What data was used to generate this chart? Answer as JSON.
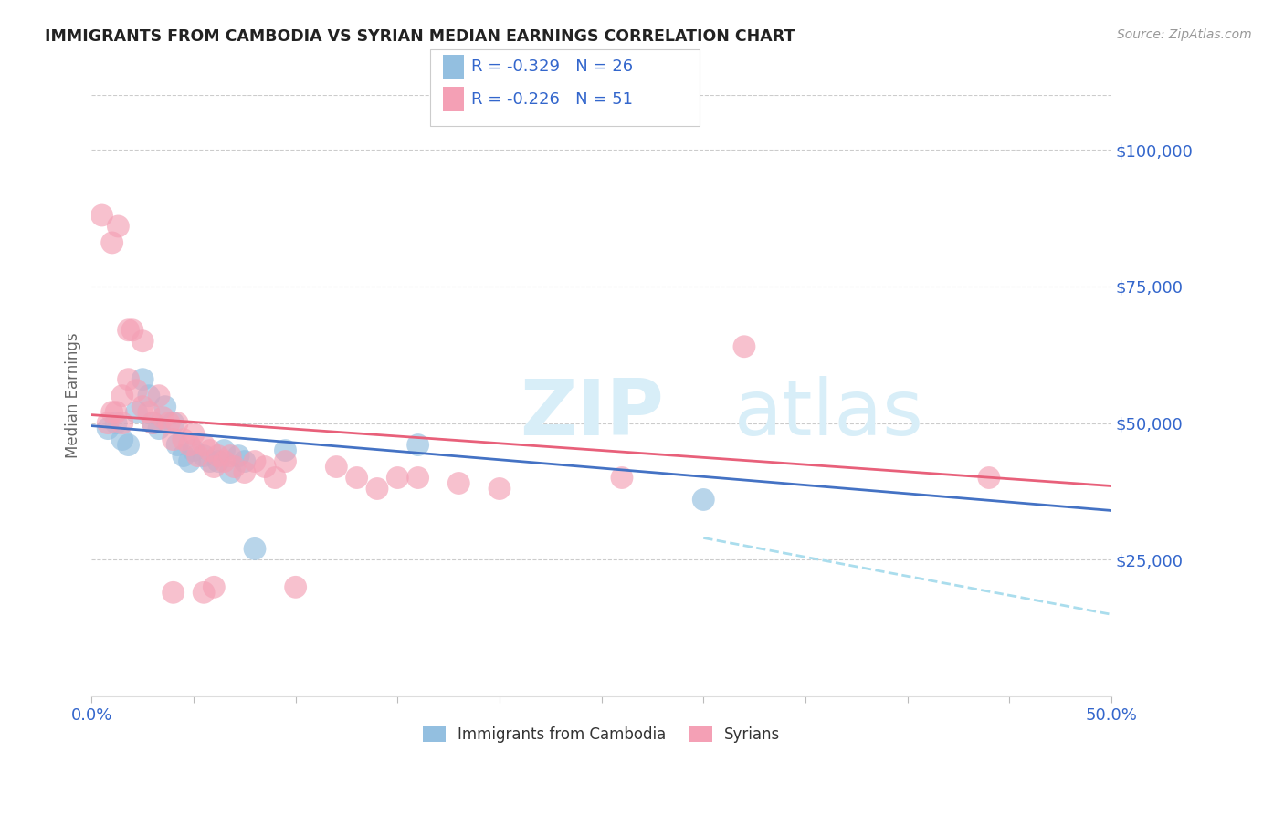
{
  "title": "IMMIGRANTS FROM CAMBODIA VS SYRIAN MEDIAN EARNINGS CORRELATION CHART",
  "source": "Source: ZipAtlas.com",
  "ylabel": "Median Earnings",
  "xlim": [
    0.0,
    0.5
  ],
  "ylim": [
    0,
    110000
  ],
  "yticks_right": [
    25000,
    50000,
    75000,
    100000
  ],
  "ytick_labels_right": [
    "$25,000",
    "$50,000",
    "$75,000",
    "$100,000"
  ],
  "cambodia_color": "#93BFE0",
  "syria_color": "#F4A0B5",
  "cambodia_R": -0.329,
  "cambodia_N": 26,
  "syria_R": -0.226,
  "syria_N": 51,
  "trend_blue_color": "#4472C4",
  "trend_pink_color": "#E8607A",
  "trend_dashed_color": "#AADDED",
  "background_color": "#ffffff",
  "watermark_color": "#D8EEF8",
  "cambodia_scatter": [
    [
      0.008,
      49000
    ],
    [
      0.012,
      50000
    ],
    [
      0.015,
      47000
    ],
    [
      0.018,
      46000
    ],
    [
      0.022,
      52000
    ],
    [
      0.025,
      58000
    ],
    [
      0.028,
      55000
    ],
    [
      0.03,
      50000
    ],
    [
      0.033,
      49000
    ],
    [
      0.036,
      53000
    ],
    [
      0.04,
      50000
    ],
    [
      0.042,
      46000
    ],
    [
      0.045,
      44000
    ],
    [
      0.048,
      43000
    ],
    [
      0.05,
      45000
    ],
    [
      0.055,
      44000
    ],
    [
      0.058,
      43000
    ],
    [
      0.062,
      43000
    ],
    [
      0.065,
      45000
    ],
    [
      0.068,
      41000
    ],
    [
      0.072,
      44000
    ],
    [
      0.075,
      43000
    ],
    [
      0.08,
      27000
    ],
    [
      0.095,
      45000
    ],
    [
      0.16,
      46000
    ],
    [
      0.3,
      36000
    ]
  ],
  "syria_scatter": [
    [
      0.005,
      88000
    ],
    [
      0.01,
      83000
    ],
    [
      0.013,
      86000
    ],
    [
      0.018,
      67000
    ],
    [
      0.02,
      67000
    ],
    [
      0.025,
      65000
    ],
    [
      0.01,
      52000
    ],
    [
      0.012,
      52000
    ],
    [
      0.015,
      55000
    ],
    [
      0.008,
      50000
    ],
    [
      0.015,
      50000
    ],
    [
      0.018,
      58000
    ],
    [
      0.022,
      56000
    ],
    [
      0.025,
      53000
    ],
    [
      0.028,
      52000
    ],
    [
      0.03,
      50000
    ],
    [
      0.033,
      55000
    ],
    [
      0.035,
      51000
    ],
    [
      0.038,
      50000
    ],
    [
      0.04,
      47000
    ],
    [
      0.042,
      50000
    ],
    [
      0.045,
      47000
    ],
    [
      0.048,
      46000
    ],
    [
      0.05,
      48000
    ],
    [
      0.052,
      44000
    ],
    [
      0.055,
      46000
    ],
    [
      0.058,
      45000
    ],
    [
      0.06,
      42000
    ],
    [
      0.062,
      44000
    ],
    [
      0.065,
      43000
    ],
    [
      0.068,
      44000
    ],
    [
      0.07,
      42000
    ],
    [
      0.075,
      41000
    ],
    [
      0.08,
      43000
    ],
    [
      0.085,
      42000
    ],
    [
      0.09,
      40000
    ],
    [
      0.095,
      43000
    ],
    [
      0.04,
      19000
    ],
    [
      0.055,
      19000
    ],
    [
      0.1,
      20000
    ],
    [
      0.06,
      20000
    ],
    [
      0.12,
      42000
    ],
    [
      0.13,
      40000
    ],
    [
      0.14,
      38000
    ],
    [
      0.15,
      40000
    ],
    [
      0.16,
      40000
    ],
    [
      0.18,
      39000
    ],
    [
      0.2,
      38000
    ],
    [
      0.26,
      40000
    ],
    [
      0.32,
      64000
    ],
    [
      0.44,
      40000
    ]
  ],
  "cambodia_trend_x": [
    0.0,
    0.5
  ],
  "cambodia_trend_y": [
    49500,
    34000
  ],
  "syria_trend_x": [
    0.0,
    0.5
  ],
  "syria_trend_y": [
    51500,
    38500
  ],
  "dashed_trend_x": [
    0.3,
    0.5
  ],
  "dashed_trend_y": [
    29000,
    15000
  ]
}
